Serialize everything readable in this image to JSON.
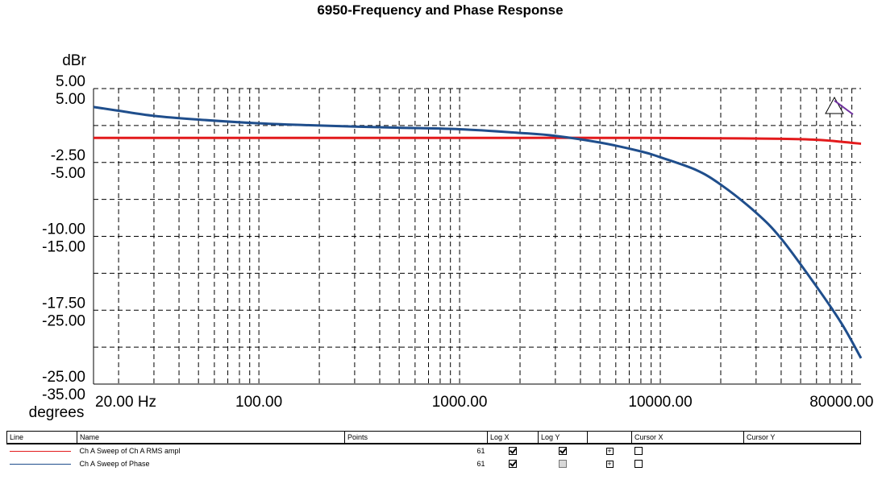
{
  "chart_data": {
    "type": "line",
    "title": "6950-Frequency and Phase Response",
    "x_scale": "log",
    "xlim": [
      15,
      100000
    ],
    "x_ticks": [
      "20.00 Hz",
      "100.00",
      "1000.00",
      "10000.00",
      "80000.00"
    ],
    "x_tick_values": [
      20,
      100,
      1000,
      10000,
      80000
    ],
    "y_left": {
      "label": "dBr",
      "ylim": [
        -25.0,
        5.0
      ],
      "ticks": [
        "5.00",
        "-2.50",
        "-10.00",
        "-17.50",
        "-25.00"
      ],
      "tick_values": [
        5.0,
        -2.5,
        -10.0,
        -17.5,
        -25.0
      ]
    },
    "y_right_inline": {
      "label": "degrees",
      "ylim": [
        -35.0,
        5.0
      ],
      "ticks": [
        "5.00",
        "-5.00",
        "-15.00",
        "-25.00",
        "-35.00"
      ],
      "tick_values": [
        5.0,
        -5.0,
        -15.0,
        -25.0,
        -35.0
      ]
    },
    "grid": true,
    "series": [
      {
        "name": "Ch A Sweep of Ch A RMS ampl",
        "color": "#e31a1c",
        "axis": "dBr",
        "x": [
          15,
          20,
          50,
          100,
          200,
          500,
          1000,
          2000,
          5000,
          10000,
          20000,
          40000,
          60000,
          80000,
          100000
        ],
        "y": [
          0.0,
          0.0,
          0.0,
          0.0,
          0.0,
          0.0,
          0.0,
          0.0,
          0.0,
          -0.02,
          -0.05,
          -0.1,
          -0.2,
          -0.4,
          -0.6
        ]
      },
      {
        "name": "Ch A Sweep of Phase",
        "color": "#1f4e8c",
        "axis": "degrees",
        "x": [
          15,
          20,
          30,
          50,
          100,
          200,
          500,
          1000,
          2000,
          3000,
          5000,
          8000,
          10000,
          15000,
          20000,
          30000,
          40000,
          60000,
          80000,
          100000
        ],
        "y": [
          2.5,
          2.0,
          1.3,
          0.8,
          0.3,
          0.0,
          -0.3,
          -0.5,
          -1.0,
          -1.4,
          -2.3,
          -3.5,
          -4.3,
          -6.0,
          -8.0,
          -11.8,
          -15.3,
          -21.8,
          -26.8,
          -31.5
        ]
      }
    ]
  },
  "legend": {
    "headers": [
      "Line",
      "Name",
      "Points",
      "Log X",
      "Log Y",
      "",
      "Cursor X",
      "Cursor Y"
    ],
    "rows": [
      {
        "color": "#e31a1c",
        "name": "Ch A Sweep of Ch A RMS ampl",
        "points": "61",
        "log_x": true,
        "log_y": true,
        "log_y_disabled": false
      },
      {
        "color": "#1f4e8c",
        "name": "Ch A Sweep of Phase",
        "points": "61",
        "log_x": true,
        "log_y": false,
        "log_y_disabled": true
      }
    ]
  },
  "annotation_icon": "triangle-marker-icon"
}
